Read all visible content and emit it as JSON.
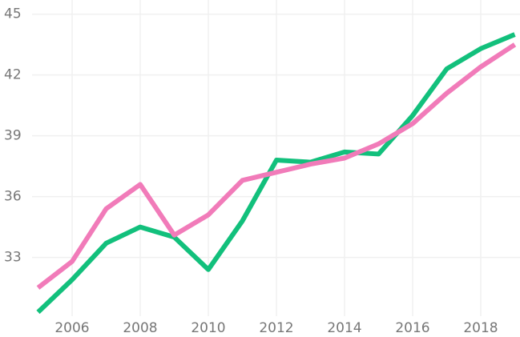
{
  "chart_data": {
    "type": "line",
    "x": [
      2005,
      2006,
      2007,
      2008,
      2009,
      2010,
      2011,
      2012,
      2013,
      2014,
      2015,
      2016,
      2017,
      2018,
      2019
    ],
    "series": [
      {
        "color": "#12c07c",
        "values": [
          30.3,
          31.9,
          33.7,
          34.5,
          34.0,
          32.4,
          34.8,
          37.8,
          37.7,
          38.2,
          38.1,
          40.0,
          42.3,
          43.3,
          44.0
        ]
      },
      {
        "color": "#f17bb9",
        "values": [
          31.5,
          32.8,
          35.4,
          36.6,
          34.1,
          35.1,
          36.8,
          37.2,
          37.6,
          37.9,
          38.6,
          39.6,
          41.1,
          42.4,
          43.5
        ]
      }
    ],
    "xlim": [
      2005,
      2019
    ],
    "xticks": [
      2006,
      2008,
      2010,
      2012,
      2014,
      2016,
      2018
    ],
    "ylim": [
      30.1,
      45.7
    ],
    "yticks": [
      33,
      36,
      39,
      42,
      45
    ],
    "grid": true
  }
}
